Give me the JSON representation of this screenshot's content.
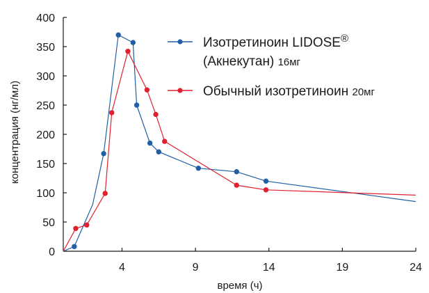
{
  "chart_data": {
    "type": "line",
    "xlabel": "время (ч)",
    "ylabel": "концентрация (нг/мл)",
    "xlim": [
      0,
      24
    ],
    "ylim": [
      0,
      400
    ],
    "xticks": [
      4,
      9,
      14,
      19,
      24
    ],
    "yticks": [
      0,
      50,
      100,
      150,
      200,
      250,
      300,
      350,
      400
    ],
    "grid": false,
    "legend_position": "top-right",
    "series": [
      {
        "name": "Изотретиноин LIDOSE® (Акнекутан) 16мг",
        "name_lines": [
          "Изотретиноин LIDOSE",
          "®",
          "(Акнекутан) ",
          "16мг"
        ],
        "color": "#1f5fa6",
        "marker": "circle",
        "points": [
          {
            "x": 0,
            "y": 0
          },
          {
            "x": 0.75,
            "y": 8
          },
          {
            "x": 2,
            "y": 80
          },
          {
            "x": 2.75,
            "y": 167
          },
          {
            "x": 3.75,
            "y": 370
          },
          {
            "x": 4.75,
            "y": 357
          },
          {
            "x": 5,
            "y": 250
          },
          {
            "x": 5.9,
            "y": 185
          },
          {
            "x": 6.5,
            "y": 170
          },
          {
            "x": 9.2,
            "y": 142
          },
          {
            "x": 11.8,
            "y": 136
          },
          {
            "x": 13.8,
            "y": 120
          },
          {
            "x": 24,
            "y": 85
          }
        ],
        "marked": [
          false,
          true,
          false,
          true,
          true,
          true,
          true,
          true,
          true,
          true,
          true,
          true,
          false
        ]
      },
      {
        "name": "Обычный изотретиноин 20мг",
        "name_lines": [
          "Обычный изотретиноин ",
          "20мг"
        ],
        "color": "#e0202e",
        "marker": "circle",
        "points": [
          {
            "x": 0,
            "y": 0
          },
          {
            "x": 0.85,
            "y": 39
          },
          {
            "x": 1.6,
            "y": 45
          },
          {
            "x": 2.85,
            "y": 99
          },
          {
            "x": 3.3,
            "y": 237
          },
          {
            "x": 4.4,
            "y": 342
          },
          {
            "x": 5.7,
            "y": 276
          },
          {
            "x": 6.3,
            "y": 234
          },
          {
            "x": 6.9,
            "y": 188
          },
          {
            "x": 11.8,
            "y": 113
          },
          {
            "x": 13.8,
            "y": 105
          },
          {
            "x": 24,
            "y": 96
          }
        ],
        "marked": [
          false,
          true,
          true,
          true,
          true,
          true,
          true,
          true,
          true,
          true,
          true,
          false
        ]
      }
    ]
  }
}
